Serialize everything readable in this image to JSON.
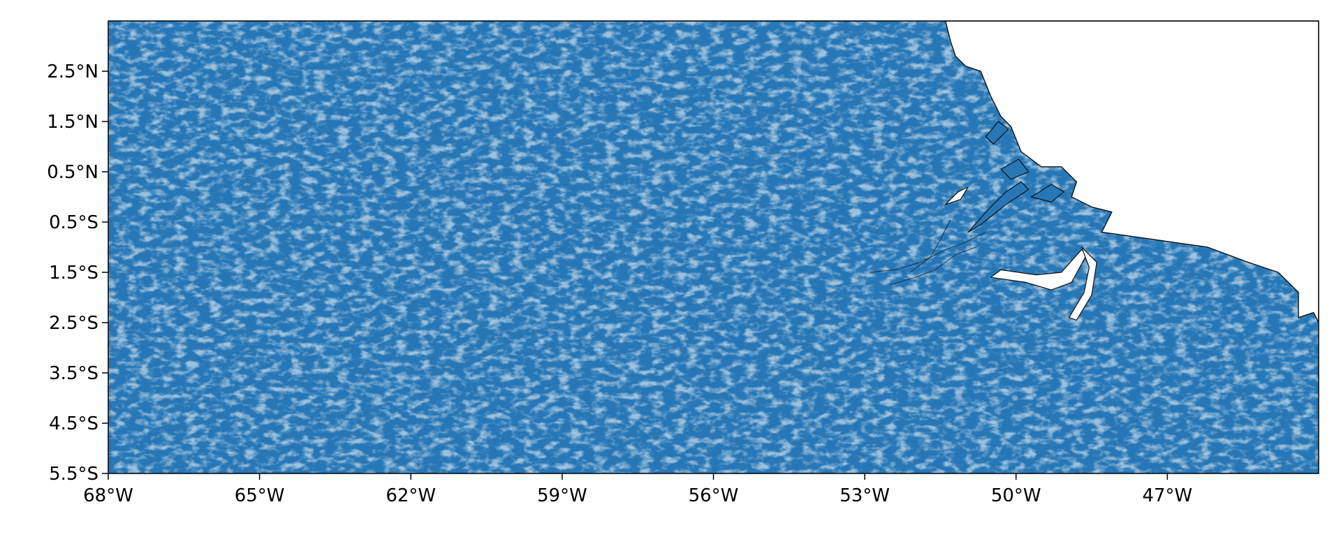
{
  "map": {
    "type": "geographic-plot",
    "extent": {
      "lon_min": -68.0,
      "lon_max": -44.0,
      "lat_min": -5.5,
      "lat_max": 3.5
    },
    "x_ticks": [
      {
        "lon": -68,
        "label": "68°W"
      },
      {
        "lon": -65,
        "label": "65°W"
      },
      {
        "lon": -62,
        "label": "62°W"
      },
      {
        "lon": -59,
        "label": "59°W"
      },
      {
        "lon": -56,
        "label": "56°W"
      },
      {
        "lon": -53,
        "label": "53°W"
      },
      {
        "lon": -50,
        "label": "50°W"
      },
      {
        "lon": -47,
        "label": "47°W"
      }
    ],
    "y_ticks": [
      {
        "lat": 2.5,
        "label": "2.5°N"
      },
      {
        "lat": 1.5,
        "label": "1.5°N"
      },
      {
        "lat": 0.5,
        "label": "0.5°N"
      },
      {
        "lat": -0.5,
        "label": "0.5°S"
      },
      {
        "lat": -1.5,
        "label": "1.5°S"
      },
      {
        "lat": -2.5,
        "label": "2.5°S"
      },
      {
        "lat": -3.5,
        "label": "3.5°S"
      },
      {
        "lat": -4.5,
        "label": "4.5°S"
      },
      {
        "lat": -5.5,
        "label": "5.5°S"
      }
    ],
    "colors": {
      "land_fill": "#2777b6",
      "ocean": "#ffffff",
      "coastline": "#111111",
      "frame": "#000000"
    },
    "ocean_outline": [
      [
        -51.4,
        3.5
      ],
      [
        -51.3,
        3.1
      ],
      [
        -51.2,
        2.8
      ],
      [
        -51.0,
        2.6
      ],
      [
        -50.7,
        2.5
      ],
      [
        -50.5,
        2.0
      ],
      [
        -50.3,
        1.6
      ],
      [
        -50.1,
        1.4
      ],
      [
        -49.9,
        0.9
      ],
      [
        -49.5,
        0.6
      ],
      [
        -49.1,
        0.6
      ],
      [
        -48.8,
        0.3
      ],
      [
        -48.9,
        0.0
      ],
      [
        -48.5,
        -0.2
      ],
      [
        -48.1,
        -0.3
      ],
      [
        -48.3,
        -0.7
      ],
      [
        -47.6,
        -0.8
      ],
      [
        -46.9,
        -0.9
      ],
      [
        -46.2,
        -1.0
      ],
      [
        -45.4,
        -1.3
      ],
      [
        -44.8,
        -1.5
      ],
      [
        -44.4,
        -1.9
      ],
      [
        -44.4,
        -2.4
      ],
      [
        -44.1,
        -2.3
      ],
      [
        -44.0,
        -2.5
      ],
      [
        -44.0,
        3.5
      ]
    ],
    "islands": [
      [
        [
          -50.95,
          -0.7
        ],
        [
          -50.55,
          -0.25
        ],
        [
          -50.2,
          0.1
        ],
        [
          -49.9,
          0.3
        ],
        [
          -49.75,
          0.15
        ],
        [
          -50.2,
          -0.15
        ],
        [
          -50.7,
          -0.55
        ]
      ],
      [
        [
          -50.3,
          0.55
        ],
        [
          -49.95,
          0.75
        ],
        [
          -49.75,
          0.5
        ],
        [
          -50.1,
          0.35
        ]
      ],
      [
        [
          -49.7,
          0.0
        ],
        [
          -49.3,
          0.25
        ],
        [
          -49.05,
          0.1
        ],
        [
          -49.3,
          -0.1
        ]
      ],
      [
        [
          -50.6,
          1.2
        ],
        [
          -50.35,
          1.5
        ],
        [
          -50.15,
          1.35
        ],
        [
          -50.45,
          1.05
        ]
      ]
    ],
    "river_channels": [
      [
        [
          -50.5,
          -1.6
        ],
        [
          -49.8,
          -1.7
        ],
        [
          -49.3,
          -1.85
        ],
        [
          -48.9,
          -1.7
        ],
        [
          -48.6,
          -1.15
        ],
        [
          -48.7,
          -1.05
        ],
        [
          -49.1,
          -1.5
        ],
        [
          -49.6,
          -1.55
        ],
        [
          -50.3,
          -1.45
        ]
      ],
      [
        [
          -48.7,
          -1.0
        ],
        [
          -48.55,
          -1.4
        ],
        [
          -48.65,
          -1.9
        ],
        [
          -48.95,
          -2.4
        ],
        [
          -48.8,
          -2.45
        ],
        [
          -48.5,
          -1.95
        ],
        [
          -48.4,
          -1.3
        ]
      ],
      [
        [
          -51.4,
          -0.15
        ],
        [
          -51.15,
          0.1
        ],
        [
          -50.95,
          0.2
        ],
        [
          -51.1,
          -0.05
        ]
      ]
    ],
    "river_lines": [
      [
        [
          -52.9,
          -1.5
        ],
        [
          -52.4,
          -1.45
        ],
        [
          -51.9,
          -1.3
        ],
        [
          -51.4,
          -1.05
        ],
        [
          -51.0,
          -0.9
        ],
        [
          -50.6,
          -0.7
        ]
      ],
      [
        [
          -52.5,
          -1.75
        ],
        [
          -52.0,
          -1.6
        ],
        [
          -51.6,
          -1.45
        ],
        [
          -51.2,
          -1.15
        ],
        [
          -50.8,
          -1.0
        ]
      ],
      [
        [
          -51.3,
          -0.45
        ],
        [
          -51.5,
          -0.85
        ],
        [
          -51.7,
          -1.2
        ],
        [
          -52.1,
          -1.5
        ]
      ]
    ]
  }
}
